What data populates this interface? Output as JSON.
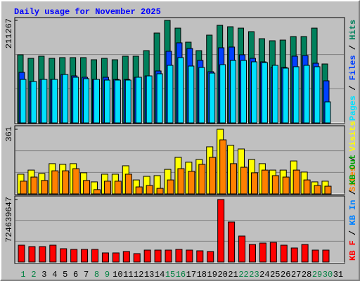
{
  "legend_separator": "/",
  "chart_data": [
    {
      "type": "bar",
      "title": "Daily usage for November 2025",
      "ylim": [
        0,
        211267
      ],
      "yticks": [
        211267
      ],
      "series": [
        {
          "name": "Hits",
          "color": "#00805c",
          "values": [
            140400,
            133100,
            137500,
            133100,
            134600,
            134600,
            134600,
            130200,
            133100,
            130200,
            137500,
            137500,
            149000,
            185200,
            211267,
            195300,
            166400,
            149000,
            180900,
            201100,
            198200,
            195300,
            188100,
            173600,
            169300,
            170700,
            178000,
            178000,
            195300,
            121500,
            null
          ]
        },
        {
          "name": "Files",
          "color": "#0040ff",
          "values": [
            104200,
            85400,
            89700,
            89700,
            99800,
            96900,
            94100,
            89700,
            94100,
            89700,
            89700,
            94100,
            96900,
            107100,
            147600,
            165000,
            153400,
            128800,
            105600,
            154800,
            156300,
            140400,
            133100,
            125900,
            114300,
            114300,
            137500,
            138900,
            123000,
            86800,
            null
          ]
        },
        {
          "name": "Pages",
          "color": "#00e0ff",
          "values": [
            89700,
            85400,
            89700,
            89700,
            99800,
            94100,
            91200,
            89700,
            88300,
            88300,
            88300,
            94100,
            96900,
            101300,
            118700,
            134600,
            117200,
            114300,
            102700,
            120100,
            128800,
            128800,
            125900,
            124400,
            118700,
            112900,
            115800,
            118700,
            115800,
            43400,
            null
          ]
        }
      ]
    },
    {
      "type": "bar",
      "ylim": [
        0,
        361
      ],
      "yticks": [
        361
      ],
      "series": [
        {
          "name": "Visits",
          "color": "#ffff00",
          "values": [
            110,
            133,
            114,
            169,
            165,
            169,
            118,
            67,
            110,
            110,
            157,
            78,
            98,
            102,
            137,
            204,
            177,
            192,
            263,
            361,
            271,
            251,
            192,
            169,
            133,
            133,
            184,
            122,
            67,
            71,
            null
          ]
        },
        {
          "name": "Sites",
          "color": "#ff8000",
          "values": [
            71,
            94,
            75,
            129,
            129,
            141,
            75,
            24,
            71,
            71,
            110,
            39,
            47,
            31,
            78,
            141,
            126,
            165,
            204,
            302,
            169,
            149,
            118,
            133,
            102,
            94,
            133,
            78,
            47,
            43,
            null
          ]
        }
      ]
    },
    {
      "type": "bar",
      "ylim": [
        0,
        724639647
      ],
      "yticks": [
        724639647
      ],
      "categories": [
        "1",
        "2",
        "3",
        "4",
        "5",
        "6",
        "7",
        "8",
        "9",
        "10",
        "11",
        "12",
        "13",
        "14",
        "15",
        "16",
        "17",
        "18",
        "19",
        "20",
        "21",
        "22",
        "23",
        "24",
        "25",
        "26",
        "27",
        "28",
        "29",
        "30",
        "31"
      ],
      "category_colors": [
        "#008040",
        "#008040",
        "#000000",
        "#000000",
        "#000000",
        "#000000",
        "#000000",
        "#008040",
        "#008040",
        "#000000",
        "#000000",
        "#000000",
        "#000000",
        "#000000",
        "#008040",
        "#008040",
        "#000000",
        "#000000",
        "#000000",
        "#000000",
        "#000000",
        "#008040",
        "#008040",
        "#000000",
        "#000000",
        "#000000",
        "#000000",
        "#000000",
        "#008040",
        "#008040",
        "#000000"
      ],
      "series": [
        {
          "name": "KB Out",
          "color": "#00a000"
        },
        {
          "name": "KB In",
          "color": "#0080ff"
        },
        {
          "name": "KB F",
          "color": "#ff0000",
          "values": [
            195408000,
            179124000,
            179124000,
            195408000,
            154698000,
            146556000,
            146556000,
            146556000,
            105846000,
            105846000,
            122130000,
            97704000,
            138414000,
            138414000,
            138414000,
            146556000,
            138414000,
            130272000,
            122130000,
            724639647,
            464095000,
            301255000,
            203550000,
            219834000,
            227976000,
            195408000,
            162840000,
            203550000,
            138414000,
            138414000,
            null
          ]
        }
      ]
    }
  ]
}
